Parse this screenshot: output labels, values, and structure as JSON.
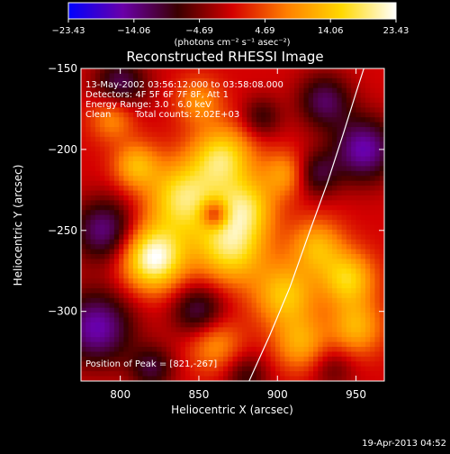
{
  "colorbar": {
    "min": -23.43,
    "max": 23.43,
    "ticks": [
      "-23.43",
      "-14.06",
      "-4.69",
      "4.69",
      "14.06",
      "23.43"
    ],
    "unit_label": "(photons cm⁻² s⁻¹ asec⁻²)",
    "colors": [
      "#0000ff",
      "#6a00a8",
      "#3a0000",
      "#d40000",
      "#ff7f00",
      "#ffd800",
      "#ffffff"
    ]
  },
  "footer": {
    "timestamp": "19-Apr-2013 04:52"
  },
  "chart_data": {
    "type": "heatmap",
    "title": "Reconstructed RHESSI Image",
    "xlabel": "Heliocentric X (arcsec)",
    "ylabel": "Heliocentric Y (arcsec)",
    "xlim": [
      775,
      968
    ],
    "ylim": [
      -343,
      -150
    ],
    "x_ticks": [
      800,
      850,
      900,
      950
    ],
    "y_ticks": [
      -150,
      -200,
      -250,
      -300
    ],
    "x_tick_labels": [
      "800",
      "850",
      "900",
      "950"
    ],
    "y_tick_labels": [
      "-150",
      "-200",
      "-250",
      "-300"
    ],
    "annotations": {
      "time_range": "13-May-2002 03:56:12.000 to 03:58:08.000",
      "detectors": "Detectors: 4F 5F 6F 7F 8F, Att 1",
      "energy": "Energy Range: 3.0 - 6.0 keV",
      "clean": "Clean",
      "total_counts": "Total counts: 2.02E+03",
      "peak": "Position of Peak = [821,-267]"
    },
    "peak": [
      821,
      -267
    ],
    "limb_curve": [
      [
        882,
        -343
      ],
      [
        895,
        -315
      ],
      [
        908,
        -285
      ],
      [
        920,
        -252
      ],
      [
        932,
        -220
      ],
      [
        942,
        -190
      ],
      [
        950,
        -165
      ],
      [
        955,
        -150
      ]
    ],
    "sources": [
      {
        "x": 821,
        "y": -267,
        "amp": 23.4,
        "sigma": 14
      },
      {
        "x": 840,
        "y": -230,
        "amp": 18,
        "sigma": 16
      },
      {
        "x": 865,
        "y": -205,
        "amp": 17,
        "sigma": 14
      },
      {
        "x": 870,
        "y": -260,
        "amp": 18,
        "sigma": 16
      },
      {
        "x": 880,
        "y": -235,
        "amp": 14,
        "sigma": 13
      },
      {
        "x": 810,
        "y": -210,
        "amp": 12,
        "sigma": 10
      },
      {
        "x": 795,
        "y": -180,
        "amp": 10,
        "sigma": 10
      },
      {
        "x": 905,
        "y": -290,
        "amp": 14,
        "sigma": 14
      },
      {
        "x": 925,
        "y": -260,
        "amp": 12,
        "sigma": 12
      },
      {
        "x": 945,
        "y": -280,
        "amp": 15,
        "sigma": 12
      },
      {
        "x": 950,
        "y": -310,
        "amp": 12,
        "sigma": 12
      },
      {
        "x": 915,
        "y": -320,
        "amp": 11,
        "sigma": 12
      },
      {
        "x": 905,
        "y": -215,
        "amp": 10,
        "sigma": 10
      },
      {
        "x": 860,
        "y": -320,
        "amp": 10,
        "sigma": 12
      },
      {
        "x": 850,
        "y": -170,
        "amp": 9,
        "sigma": 10
      },
      {
        "x": 790,
        "y": -250,
        "amp": -14,
        "sigma": 14
      },
      {
        "x": 785,
        "y": -310,
        "amp": -16,
        "sigma": 16
      },
      {
        "x": 800,
        "y": -160,
        "amp": -12,
        "sigma": 12
      },
      {
        "x": 955,
        "y": -200,
        "amp": -16,
        "sigma": 14
      },
      {
        "x": 930,
        "y": -170,
        "amp": -12,
        "sigma": 12
      },
      {
        "x": 850,
        "y": -300,
        "amp": -12,
        "sigma": 12
      },
      {
        "x": 820,
        "y": -335,
        "amp": -10,
        "sigma": 10
      },
      {
        "x": 880,
        "y": -340,
        "amp": -8,
        "sigma": 10
      },
      {
        "x": 925,
        "y": -215,
        "amp": -10,
        "sigma": 10
      },
      {
        "x": 860,
        "y": -240,
        "amp": -14,
        "sigma": 6
      },
      {
        "x": 890,
        "y": -180,
        "amp": -8,
        "sigma": 9
      },
      {
        "x": 935,
        "y": -335,
        "amp": -6,
        "sigma": 10
      }
    ]
  }
}
